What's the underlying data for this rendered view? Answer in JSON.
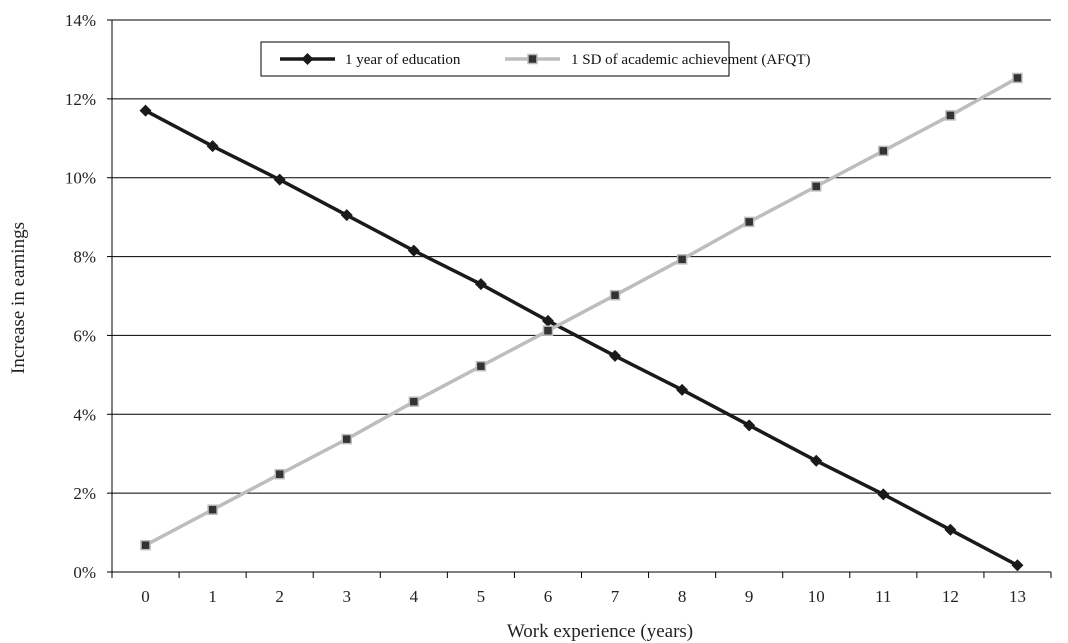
{
  "chart_data": {
    "type": "line",
    "title": "",
    "xlabel": "Work experience (years)",
    "ylabel": "Increase in earnings",
    "x": [
      0,
      1,
      2,
      3,
      4,
      5,
      6,
      7,
      8,
      9,
      10,
      11,
      12,
      13
    ],
    "x_tick_labels": [
      "0",
      "1",
      "2",
      "3",
      "4",
      "5",
      "6",
      "7",
      "8",
      "9",
      "10",
      "11",
      "12",
      "13"
    ],
    "ylim": [
      0,
      14
    ],
    "y_ticks": [
      0,
      2,
      4,
      6,
      8,
      10,
      12,
      14
    ],
    "y_tick_labels": [
      "0%",
      "2%",
      "4%",
      "6%",
      "8%",
      "10%",
      "12%",
      "14%"
    ],
    "grid": "horizontal",
    "legend_position": "top-center",
    "series": [
      {
        "name": "1 year of education",
        "color": "#1a1a1a",
        "marker": "diamond",
        "values": [
          11.7,
          10.8,
          9.95,
          9.05,
          8.15,
          7.3,
          6.37,
          5.48,
          4.62,
          3.72,
          2.82,
          1.97,
          1.07,
          0.17
        ]
      },
      {
        "name": "1 SD of academic achievement (AFQT)",
        "color": "#bdbdbd",
        "marker_color": "#333333",
        "marker": "square",
        "values": [
          0.68,
          1.58,
          2.48,
          3.37,
          4.32,
          5.22,
          6.12,
          7.02,
          7.93,
          8.88,
          9.78,
          10.68,
          11.58,
          12.53
        ]
      }
    ]
  }
}
